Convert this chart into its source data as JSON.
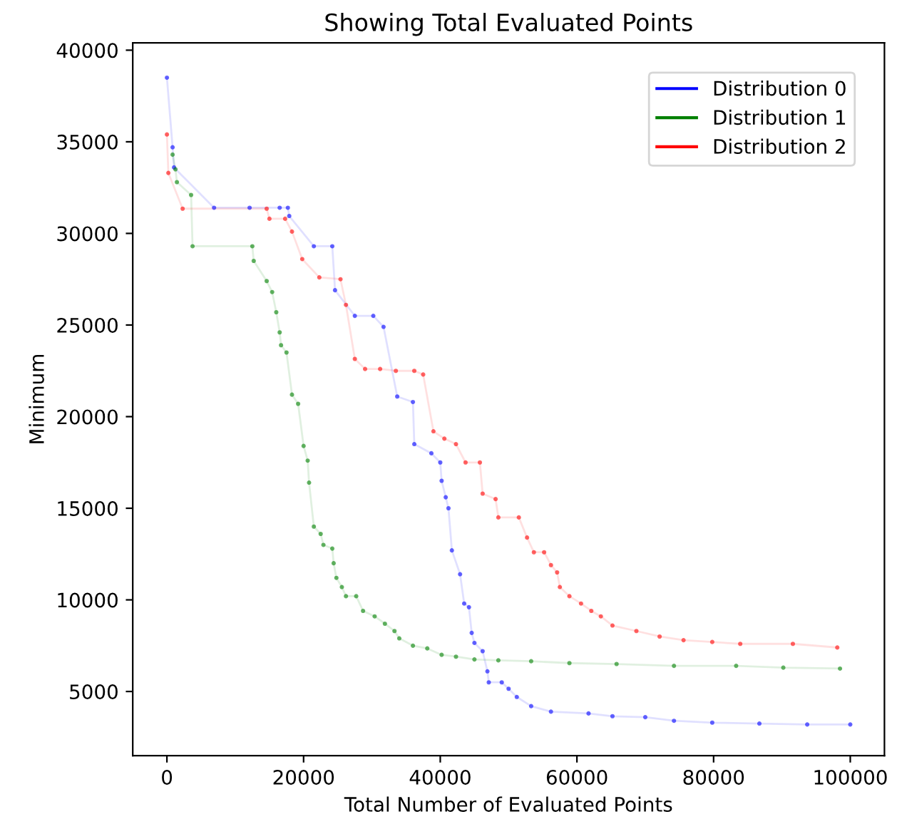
{
  "chart_data": {
    "type": "line",
    "title": "Showing Total Evaluated Points",
    "xlabel": "Total Number of Evaluated Points",
    "ylabel": "Minimum",
    "xlim": [
      -5000,
      105000
    ],
    "xticks": [
      0,
      20000,
      40000,
      60000,
      80000,
      100000
    ],
    "ylim": [
      1500,
      40400
    ],
    "yticks": [
      5000,
      10000,
      15000,
      20000,
      25000,
      30000,
      35000,
      40000
    ],
    "grid": false,
    "legend": "top right",
    "marker": "circle",
    "line_style": "solid",
    "series": [
      {
        "name": "Distribution 0",
        "color": "#0000ff",
        "x": [
          0,
          830,
          1040,
          6900,
          12100,
          16500,
          17700,
          17900,
          21500,
          24200,
          24600,
          27500,
          30200,
          31700,
          33700,
          36000,
          36200,
          38700,
          40000,
          40200,
          40800,
          41200,
          41700,
          42900,
          43500,
          44200,
          44600,
          45000,
          46200,
          46900,
          47100,
          49000,
          50000,
          51200,
          53300,
          56200,
          61700,
          65200,
          70000,
          74200,
          79800,
          86700,
          93700,
          100000
        ],
        "values": [
          38500,
          34700,
          33600,
          31400,
          31400,
          31400,
          31400,
          30950,
          29300,
          29300,
          26900,
          25500,
          25500,
          24900,
          21100,
          20800,
          18500,
          18000,
          17500,
          16500,
          15600,
          15000,
          12700,
          11400,
          9800,
          9600,
          8200,
          7650,
          7200,
          6100,
          5500,
          5500,
          5150,
          4700,
          4200,
          3900,
          3800,
          3650,
          3600,
          3400,
          3300,
          3250,
          3200,
          3200
        ]
      },
      {
        "name": "Distribution 1",
        "color": "#008000",
        "x": [
          830,
          1250,
          1460,
          3540,
          3750,
          12500,
          12700,
          14600,
          15400,
          16000,
          16500,
          16700,
          17500,
          18300,
          19200,
          20000,
          20600,
          20800,
          21500,
          22500,
          22900,
          24200,
          24400,
          24800,
          25600,
          26200,
          27700,
          28700,
          30400,
          31900,
          33300,
          34000,
          36000,
          38100,
          40200,
          42300,
          45000,
          48500,
          53300,
          58900,
          65800,
          74200,
          83300,
          90200,
          98500
        ],
        "values": [
          34300,
          33500,
          32800,
          32100,
          29300,
          29300,
          28500,
          27400,
          26800,
          25700,
          24600,
          23900,
          23500,
          21200,
          20700,
          18400,
          17600,
          16400,
          14000,
          13600,
          13000,
          12800,
          12000,
          11200,
          10700,
          10200,
          10200,
          9400,
          9100,
          8700,
          8300,
          7900,
          7500,
          7350,
          7000,
          6900,
          6750,
          6700,
          6650,
          6550,
          6500,
          6400,
          6400,
          6300,
          6250
        ]
      },
      {
        "name": "Distribution 2",
        "color": "#ff0000",
        "x": [
          0,
          210,
          2300,
          14600,
          15000,
          17300,
          18300,
          19800,
          22300,
          25400,
          26200,
          27500,
          29000,
          31200,
          33500,
          36200,
          37500,
          39000,
          40600,
          42300,
          43700,
          45800,
          46200,
          48100,
          48500,
          51500,
          52700,
          53700,
          55200,
          56200,
          57100,
          57500,
          58900,
          60600,
          62100,
          63500,
          65200,
          68700,
          72100,
          75600,
          79800,
          83900,
          91600,
          98100
        ],
        "values": [
          35400,
          33300,
          31350,
          31350,
          30800,
          30800,
          30100,
          28600,
          27600,
          27500,
          26100,
          23150,
          22600,
          22600,
          22500,
          22500,
          22300,
          19200,
          18800,
          18500,
          17500,
          17500,
          15800,
          15500,
          14500,
          14500,
          13400,
          12600,
          12600,
          11900,
          11500,
          10700,
          10200,
          9800,
          9400,
          9100,
          8600,
          8300,
          8000,
          7800,
          7700,
          7600,
          7600,
          7400
        ]
      }
    ]
  }
}
